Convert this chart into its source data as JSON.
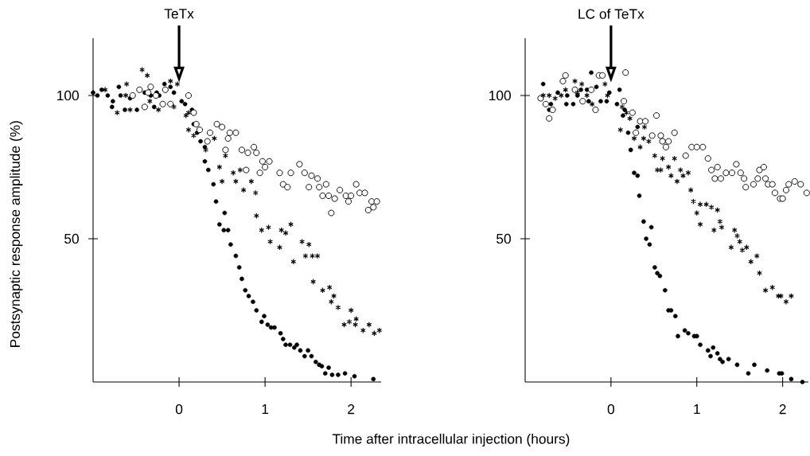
{
  "chart_data": [
    {
      "type": "scatter",
      "title": "TeTx",
      "xlabel": "Time after intracellular injection (hours)",
      "ylabel": "Postsynaptic response amplitude (%)",
      "xlim": [
        -1,
        2.35
      ],
      "ylim": [
        0,
        120
      ],
      "xticks": [
        0,
        1,
        2
      ],
      "yticks": [
        50,
        100
      ],
      "ref_lines": [
        {
          "axis": "x",
          "value": 0
        }
      ],
      "series": [
        {
          "color": "#000000",
          "marker": "circle",
          "x": [
            -1.0,
            -0.95,
            -0.9,
            -0.83,
            -0.77,
            -0.78,
            -0.7,
            -0.68,
            -0.63,
            -0.57,
            -0.49,
            -0.4,
            -0.33,
            -0.29,
            -0.26,
            -0.23,
            -0.17,
            -0.1,
            -0.06,
            0.03,
            0.07,
            0.15,
            0.17,
            0.21,
            0.25,
            0.3,
            0.3,
            0.34,
            0.4,
            0.43,
            0.53,
            0.47,
            0.52,
            0.57,
            0.6,
            0.66,
            0.7,
            0.73,
            0.77,
            0.81,
            0.86,
            0.9,
            0.99,
            0.96,
            1.03,
            1.07,
            1.11,
            1.18,
            1.21,
            1.24,
            1.29,
            1.34,
            1.37,
            1.41,
            1.46,
            1.5,
            1.54,
            1.59,
            1.63,
            1.66,
            1.74,
            1.7,
            1.78,
            1.85,
            1.93,
            2.04,
            2.26
          ],
          "values": [
            101,
            100,
            102,
            100,
            98,
            96,
            103,
            100,
            95,
            99,
            95,
            101,
            100,
            96,
            101,
            100,
            104,
            103,
            101,
            98,
            97,
            95,
            90,
            87,
            84,
            82,
            77,
            74,
            69,
            63,
            59,
            55,
            53,
            53,
            48,
            44,
            40,
            36,
            32,
            30,
            28,
            25,
            23,
            21,
            20,
            19,
            19,
            17,
            15,
            13,
            13,
            12,
            13,
            11,
            9,
            11,
            9,
            7,
            6,
            5.5,
            5,
            3,
            2.5,
            2.5,
            3,
            2,
            1
          ]
        },
        {
          "color": "#ffffff",
          "marker": "circle",
          "x": [
            -0.46,
            -0.4,
            -0.33,
            -0.36,
            -0.27,
            -0.54,
            -0.19,
            -0.16,
            -0.1,
            0.11,
            0.17,
            0.2,
            0.24,
            0.36,
            0.33,
            0.44,
            0.5,
            0.59,
            0.66,
            0.57,
            0.54,
            0.73,
            0.8,
            0.87,
            0.9,
            0.97,
            1.05,
            1.0,
            0.78,
            0.94,
            1.17,
            1.3,
            1.21,
            1.26,
            1.4,
            1.46,
            1.54,
            1.61,
            1.51,
            1.63,
            1.71,
            1.67,
            1.74,
            1.81,
            1.87,
            1.94,
            2.0,
            1.97,
            1.77,
            2.06,
            2.1,
            2.16,
            2.24,
            2.3,
            2.2,
            2.26
          ],
          "values": [
            102,
            96,
            103,
            101,
            100,
            100,
            97,
            102,
            97,
            100,
            94,
            90,
            88,
            87,
            84,
            90,
            89,
            87,
            87,
            85,
            81,
            81,
            80,
            82,
            80,
            77,
            77,
            75,
            74,
            73,
            73,
            73,
            69,
            68,
            76,
            73,
            72,
            71,
            68,
            68,
            69,
            65,
            65,
            64,
            67,
            65,
            65,
            63,
            59,
            69,
            66,
            66,
            63,
            63,
            60,
            61
          ]
        },
        {
          "color": "#000000",
          "marker": "cross",
          "x": [
            -0.86,
            -0.8,
            -0.72,
            -0.61,
            -0.57,
            -0.62,
            -0.43,
            -0.37,
            -0.34,
            -0.24,
            -0.1,
            -0.02,
            -0.06,
            0.08,
            0.11,
            0.11,
            0.17,
            0.41,
            0.31,
            0.54,
            0.47,
            0.63,
            0.71,
            0.5,
            0.66,
            0.84,
            0.75,
            0.89,
            0.9,
            0.96,
            1.04,
            1.19,
            1.24,
            1.3,
            1.06,
            1.43,
            1.51,
            1.17,
            1.33,
            1.47,
            1.55,
            1.61,
            1.56,
            1.67,
            1.75,
            1.8,
            1.77,
            1.85,
            2.0,
            2.06,
            1.92,
            1.98,
            2.05,
            2.14,
            2.21,
            2.27,
            2.33
          ],
          "values": [
            102,
            null,
            94,
            104,
            95,
            100,
            109,
            107,
            98,
            95,
            105,
            104,
            96,
            93,
            94,
            88,
            86,
            85,
            81,
            79,
            75,
            73,
            74,
            70,
            70,
            70,
            67,
            66,
            58,
            53,
            54,
            53,
            52,
            55,
            49,
            49,
            48,
            47,
            42,
            44,
            44,
            44,
            35,
            32,
            33,
            30,
            28,
            26,
            25,
            22,
            20,
            21,
            20,
            18,
            20,
            17,
            18
          ]
        }
      ]
    },
    {
      "type": "scatter",
      "title": "LC of TeTx",
      "xlim": [
        -1,
        2.3
      ],
      "ylim": [
        0,
        120
      ],
      "xticks": [
        0,
        1,
        2
      ],
      "yticks": [
        50,
        100
      ],
      "ref_lines": [
        {
          "axis": "x",
          "value": 0
        }
      ],
      "series": [
        {
          "color": "#000000",
          "marker": "circle",
          "x": [
            -0.79,
            -0.7,
            -0.72,
            -0.62,
            -0.51,
            -0.52,
            -0.44,
            -0.39,
            -0.35,
            -0.28,
            -0.26,
            -0.17,
            -0.23,
            -0.12,
            -0.05,
            -0.02,
            0.1,
            0.07,
            0.16,
            0.14,
            0.31,
            0.2,
            0.23,
            0.27,
            0.31,
            0.33,
            0.38,
            0.47,
            0.41,
            0.45,
            0.51,
            0.54,
            0.57,
            0.63,
            0.67,
            0.7,
            0.75,
            0.78,
            0.86,
            0.9,
            0.97,
            1.0,
            1.04,
            1.13,
            1.19,
            1.16,
            1.24,
            1.27,
            1.3,
            1.37,
            1.47,
            1.6,
            1.67,
            1.82,
            1.96,
            1.99,
            2.1,
            2.23
          ],
          "values": [
            104,
            97,
            95,
            101,
            100,
            97,
            97,
            100,
            102,
            102,
            98,
            103,
            108,
            98,
            98,
            101,
            102,
            97,
            95,
            93,
            89,
            87,
            81,
            73,
            72,
            65,
            56,
            54,
            50,
            48,
            40,
            38,
            37,
            32,
            25,
            25,
            23,
            16,
            18,
            17,
            16,
            16,
            13,
            11,
            12,
            9,
            10,
            8,
            7,
            8,
            6,
            3,
            6,
            4,
            3,
            3,
            1,
            0
          ]
        },
        {
          "color": "#ffffff",
          "marker": "circle",
          "x": [
            -0.82,
            -0.76,
            -0.68,
            -0.72,
            -0.56,
            -0.53,
            -0.42,
            -0.33,
            -0.23,
            -0.18,
            -0.14,
            -0.1,
            0.17,
            0.15,
            0.25,
            0.34,
            0.4,
            0.29,
            0.53,
            0.48,
            0.58,
            0.6,
            0.67,
            0.64,
            0.74,
            0.87,
            0.94,
            1.0,
            1.07,
            1.13,
            1.17,
            1.24,
            1.21,
            1.28,
            1.34,
            1.41,
            1.46,
            1.51,
            1.55,
            1.57,
            1.66,
            1.71,
            1.73,
            1.78,
            1.8,
            1.83,
            1.88,
            1.91,
            1.97,
            2.0,
            2.04,
            2.07,
            2.14,
            2.21,
            2.28
          ],
          "values": [
            99,
            97,
            95,
            92,
            105,
            107,
            102,
            98,
            102,
            95,
            107,
            107,
            108,
            98,
            94,
            91,
            91,
            87,
            93,
            86,
            86,
            84,
            84,
            82,
            87,
            79,
            82,
            82,
            82,
            78,
            74,
            75,
            71,
            71,
            73,
            73,
            76,
            73,
            71,
            68,
            69,
            71,
            74,
            75,
            71,
            69,
            69,
            66,
            64,
            64,
            67,
            69,
            70,
            69,
            66
          ]
        },
        {
          "color": "#000000",
          "marker": "cross",
          "x": [
            -0.79,
            -0.72,
            -0.65,
            -0.58,
            -0.53,
            -0.42,
            -0.34,
            -0.39,
            -0.28,
            -0.22,
            -0.07,
            -0.04,
            0.01,
            0.13,
            0.18,
            0.22,
            0.11,
            0.27,
            0.39,
            0.38,
            0.44,
            0.34,
            0.51,
            0.6,
            0.74,
            0.67,
            0.54,
            0.58,
            0.7,
            0.81,
            0.84,
            0.9,
            0.77,
            0.93,
            0.96,
            1.04,
            1.11,
            1.17,
            1.24,
            1.0,
            1.04,
            1.27,
            1.2,
            1.29,
            1.44,
            1.47,
            1.5,
            1.4,
            1.58,
            1.53,
            1.63,
            1.7,
            1.73,
            1.8,
            1.88,
            1.95,
            1.98,
            2.04,
            2.1
          ],
          "values": [
            100,
            100,
            99,
            100,
            102,
            105,
            104,
            101,
            100,
            97,
            104,
            100,
            null,
            96,
            94,
            92,
            88,
            85,
            89,
            85,
            84,
            82,
            79,
            78,
            78,
            75,
            74,
            74,
            72,
            74,
            72,
            73,
            70,
            67,
            63,
            62,
            62,
            61,
            60,
            59,
            55,
            56,
            53,
            54,
            53,
            51,
            49,
            47,
            47,
            46,
            42,
            44,
            38,
            32,
            33,
            30,
            30,
            28,
            30
          ]
        }
      ]
    }
  ]
}
